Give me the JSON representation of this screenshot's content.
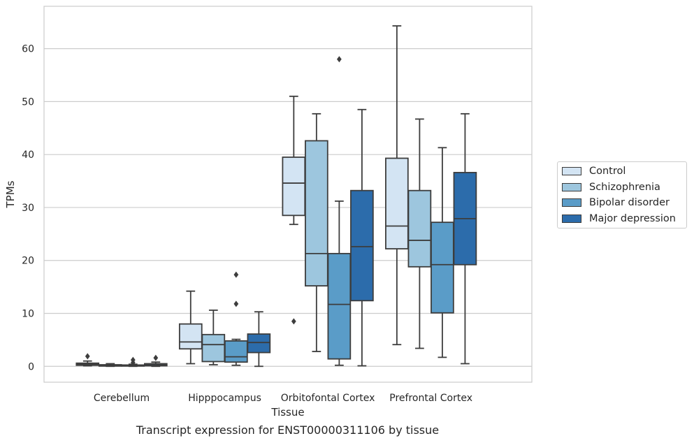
{
  "caption": "Transcript expression for ENST00000311106 by tissue",
  "chart_data": {
    "type": "box",
    "xlabel": "Tissue",
    "ylabel": "TPMs",
    "ylim": [
      -3,
      68
    ],
    "yticks": [
      0,
      10,
      20,
      30,
      40,
      50,
      60
    ],
    "grid": true,
    "legend_position": "right",
    "categories": [
      "Cerebellum",
      "Hipppocampus",
      "Orbitofontal Cortex",
      "Prefrontal Cortex"
    ],
    "series": [
      {
        "name": "Control",
        "color": "#d3e4f3",
        "boxes": [
          {
            "whislo": 0.1,
            "q1": 0.2,
            "med": 0.4,
            "q3": 0.6,
            "whishi": 1.0,
            "fliers": [
              1.9
            ]
          },
          {
            "whislo": 0.5,
            "q1": 3.3,
            "med": 4.6,
            "q3": 8.0,
            "whishi": 14.2,
            "fliers": []
          },
          {
            "whislo": 26.8,
            "q1": 28.5,
            "med": 34.6,
            "q3": 39.5,
            "whishi": 51.0,
            "fliers": [
              8.5
            ]
          },
          {
            "whislo": 4.1,
            "q1": 22.2,
            "med": 26.5,
            "q3": 39.3,
            "whishi": 64.3,
            "fliers": []
          }
        ]
      },
      {
        "name": "Schizophrenia",
        "color": "#9dc6de",
        "boxes": [
          {
            "whislo": 0.0,
            "q1": 0.05,
            "med": 0.15,
            "q3": 0.3,
            "whishi": 0.5,
            "fliers": []
          },
          {
            "whislo": 0.3,
            "q1": 0.9,
            "med": 4.1,
            "q3": 6.0,
            "whishi": 10.6,
            "fliers": []
          },
          {
            "whislo": 2.8,
            "q1": 15.2,
            "med": 21.3,
            "q3": 42.6,
            "whishi": 47.7,
            "fliers": []
          },
          {
            "whislo": 3.4,
            "q1": 18.8,
            "med": 23.8,
            "q3": 33.2,
            "whishi": 46.7,
            "fliers": []
          }
        ]
      },
      {
        "name": "Bipolar disorder",
        "color": "#5a9cc8",
        "boxes": [
          {
            "whislo": 0.0,
            "q1": 0.05,
            "med": 0.1,
            "q3": 0.25,
            "whishi": 0.4,
            "fliers": [
              0.7,
              1.2
            ]
          },
          {
            "whislo": 0.2,
            "q1": 0.8,
            "med": 1.8,
            "q3": 4.8,
            "whishi": 5.1,
            "fliers": [
              11.8,
              17.3
            ]
          },
          {
            "whislo": 0.2,
            "q1": 1.4,
            "med": 11.7,
            "q3": 21.3,
            "whishi": 31.2,
            "fliers": [
              58.0
            ]
          },
          {
            "whislo": 1.7,
            "q1": 10.1,
            "med": 19.2,
            "q3": 27.2,
            "whishi": 41.3,
            "fliers": []
          }
        ]
      },
      {
        "name": "Major depression",
        "color": "#2c6cab",
        "boxes": [
          {
            "whislo": 0.0,
            "q1": 0.1,
            "med": 0.3,
            "q3": 0.5,
            "whishi": 0.8,
            "fliers": [
              1.6
            ]
          },
          {
            "whislo": 0.0,
            "q1": 2.6,
            "med": 4.5,
            "q3": 6.1,
            "whishi": 10.3,
            "fliers": []
          },
          {
            "whislo": 0.1,
            "q1": 12.4,
            "med": 22.6,
            "q3": 33.2,
            "whishi": 48.5,
            "fliers": []
          },
          {
            "whislo": 0.5,
            "q1": 19.2,
            "med": 27.9,
            "q3": 36.6,
            "whishi": 47.7,
            "fliers": []
          }
        ]
      }
    ]
  }
}
